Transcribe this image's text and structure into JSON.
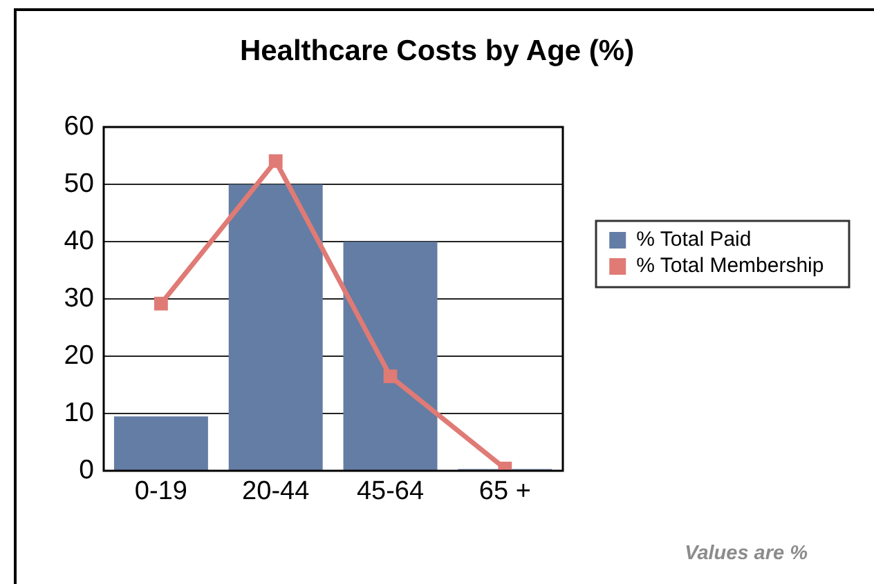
{
  "chart_data": {
    "type": "bar",
    "title": "Healthcare Costs by Age (%)",
    "categories": [
      "0-19",
      "20-44",
      "45-64",
      "65 +"
    ],
    "series": [
      {
        "name": "% Total Paid",
        "type": "bar",
        "color": "#637da5",
        "values": [
          9.5,
          50,
          40,
          0.3
        ]
      },
      {
        "name": "% Total Membership",
        "type": "line",
        "color": "#e07a75",
        "values": [
          29.2,
          54.1,
          16.5,
          0.4
        ]
      }
    ],
    "ylim": [
      0,
      60
    ],
    "yticks": [
      0,
      10,
      20,
      30,
      40,
      50,
      60
    ],
    "grid": "y",
    "legend": "right",
    "marker": "square",
    "annotations": [
      "Values are %"
    ]
  }
}
